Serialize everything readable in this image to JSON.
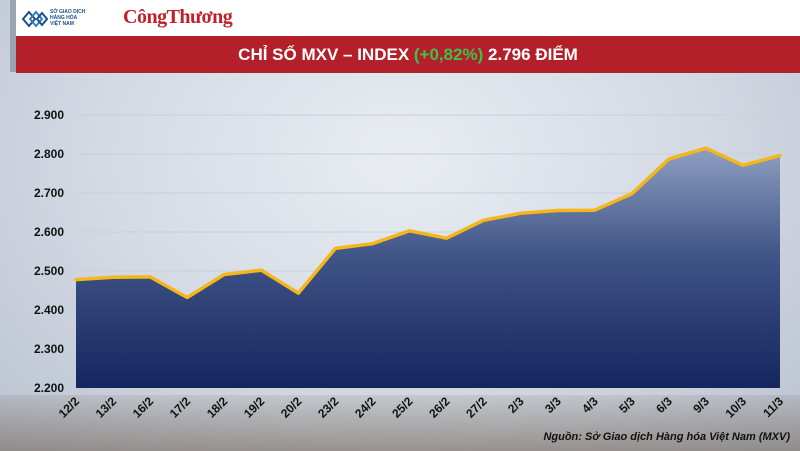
{
  "header": {
    "logo_lines": [
      "SỞ GIAO DỊCH",
      "HÀNG HÓA",
      "VIỆT NAM"
    ],
    "brand": "CôngThương"
  },
  "title": {
    "prefix": "CHỈ SỐ MXV – INDEX ",
    "change": "(+0,82%)",
    "suffix": " 2.796 ĐIỂM"
  },
  "source": "Nguồn: Sở Giao dịch Hàng hóa Việt Nam (MXV)",
  "colors": {
    "area_top": "#8e9fc1",
    "area_bottom": "#14265e",
    "line": "#f5b617",
    "title_band": "#b3202a",
    "change_text": "#3cc34a"
  },
  "chart_data": {
    "type": "area",
    "title": "CHỈ SỐ MXV – INDEX (+0,82%) 2.796 ĐIỂM",
    "categories": [
      "12/2",
      "13/2",
      "16/2",
      "17/2",
      "18/2",
      "19/2",
      "20/2",
      "23/2",
      "24/2",
      "25/2",
      "26/2",
      "27/2",
      "2/3",
      "3/3",
      "4/3",
      "5/3",
      "6/3",
      "9/3",
      "10/3",
      "11/3"
    ],
    "values": [
      2478,
      2484,
      2485,
      2432,
      2491,
      2502,
      2443,
      2558,
      2570,
      2603,
      2584,
      2630,
      2648,
      2655,
      2656,
      2698,
      2787,
      2815,
      2771,
      2796
    ],
    "ylim": [
      2200,
      2900
    ],
    "yticks": [
      2200,
      2300,
      2400,
      2500,
      2600,
      2700,
      2800,
      2900
    ],
    "ytick_labels": [
      "2.200",
      "2.300",
      "2.400",
      "2.500",
      "2.600",
      "2.700",
      "2.800",
      "2.900"
    ],
    "grid": true,
    "legend": "none"
  }
}
